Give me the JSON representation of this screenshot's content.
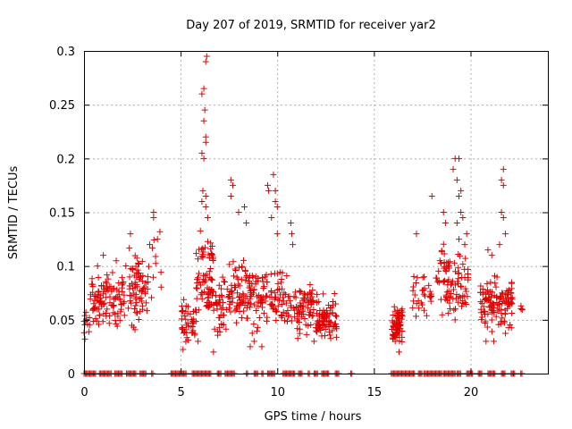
{
  "chart_data": {
    "type": "scatter",
    "title": "Day 207 of 2019, SRMTID for receiver yar2",
    "xlabel": "GPS time / hours",
    "ylabel": "SRMTID / TECUs",
    "xlim": [
      0,
      24
    ],
    "ylim": [
      0,
      0.3
    ],
    "xticks": [
      0,
      5,
      10,
      15,
      20
    ],
    "yticks": [
      0,
      0.05,
      0.1,
      0.15,
      0.2,
      0.25,
      0.3
    ],
    "ytick_labels": [
      "0",
      "0.05",
      "0.1",
      "0.15",
      "0.2",
      "0.25",
      "0.3"
    ],
    "grid": true,
    "marker": "+",
    "color": "#e00000",
    "clusters": [
      {
        "x_range": [
          0.0,
          0.3
        ],
        "y_range": [
          0.025,
          0.07
        ],
        "count": 12
      },
      {
        "x_range": [
          0.3,
          2.3
        ],
        "y_range": [
          0.03,
          0.11
        ],
        "count": 110
      },
      {
        "x_range": [
          2.3,
          3.3
        ],
        "y_range": [
          0.03,
          0.13
        ],
        "count": 70
      },
      {
        "x_range": [
          3.3,
          4.0
        ],
        "y_range": [
          0.04,
          0.15
        ],
        "count": 10
      },
      {
        "x_range": [
          5.0,
          5.8
        ],
        "y_range": [
          0.02,
          0.08
        ],
        "count": 45
      },
      {
        "x_range": [
          5.8,
          6.7
        ],
        "y_range": [
          0.04,
          0.14
        ],
        "count": 75
      },
      {
        "x_range": [
          6.7,
          7.5
        ],
        "y_range": [
          0.02,
          0.1
        ],
        "count": 40
      },
      {
        "x_range": [
          7.5,
          9.0
        ],
        "y_range": [
          0.03,
          0.11
        ],
        "count": 95
      },
      {
        "x_range": [
          9.0,
          10.5
        ],
        "y_range": [
          0.03,
          0.11
        ],
        "count": 80
      },
      {
        "x_range": [
          10.5,
          12.0
        ],
        "y_range": [
          0.03,
          0.09
        ],
        "count": 80
      },
      {
        "x_range": [
          12.0,
          13.1
        ],
        "y_range": [
          0.025,
          0.08
        ],
        "count": 80
      },
      {
        "x_range": [
          15.9,
          16.5
        ],
        "y_range": [
          0.025,
          0.065
        ],
        "count": 70
      },
      {
        "x_range": [
          17.0,
          18.0
        ],
        "y_range": [
          0.05,
          0.1
        ],
        "count": 30
      },
      {
        "x_range": [
          18.2,
          19.9
        ],
        "y_range": [
          0.04,
          0.13
        ],
        "count": 90
      },
      {
        "x_range": [
          20.5,
          22.2
        ],
        "y_range": [
          0.03,
          0.1
        ],
        "count": 120
      },
      {
        "x_range": [
          22.6,
          22.7
        ],
        "y_range": [
          0.055,
          0.065
        ],
        "count": 4
      }
    ],
    "extra_points": [
      {
        "x": 0.5,
        "y": 0.065
      },
      {
        "x": 0.7,
        "y": 0.1
      },
      {
        "x": 1.0,
        "y": 0.11
      },
      {
        "x": 2.4,
        "y": 0.13
      },
      {
        "x": 3.4,
        "y": 0.12
      },
      {
        "x": 3.6,
        "y": 0.15
      },
      {
        "x": 3.6,
        "y": 0.145
      },
      {
        "x": 3.8,
        "y": 0.125
      },
      {
        "x": 6.1,
        "y": 0.26
      },
      {
        "x": 6.2,
        "y": 0.265
      },
      {
        "x": 6.3,
        "y": 0.29
      },
      {
        "x": 6.35,
        "y": 0.295
      },
      {
        "x": 6.25,
        "y": 0.245
      },
      {
        "x": 6.2,
        "y": 0.235
      },
      {
        "x": 6.3,
        "y": 0.22
      },
      {
        "x": 6.3,
        "y": 0.215
      },
      {
        "x": 6.1,
        "y": 0.205
      },
      {
        "x": 6.2,
        "y": 0.2
      },
      {
        "x": 6.15,
        "y": 0.17
      },
      {
        "x": 6.3,
        "y": 0.165
      },
      {
        "x": 6.1,
        "y": 0.16
      },
      {
        "x": 6.3,
        "y": 0.155
      },
      {
        "x": 6.4,
        "y": 0.145
      },
      {
        "x": 6.7,
        "y": 0.02
      },
      {
        "x": 5.9,
        "y": 0.03
      },
      {
        "x": 7.6,
        "y": 0.18
      },
      {
        "x": 7.7,
        "y": 0.175
      },
      {
        "x": 7.6,
        "y": 0.165
      },
      {
        "x": 8.3,
        "y": 0.155
      },
      {
        "x": 8.0,
        "y": 0.15
      },
      {
        "x": 8.4,
        "y": 0.14
      },
      {
        "x": 9.5,
        "y": 0.175
      },
      {
        "x": 9.55,
        "y": 0.17
      },
      {
        "x": 9.8,
        "y": 0.185
      },
      {
        "x": 9.9,
        "y": 0.17
      },
      {
        "x": 9.9,
        "y": 0.16
      },
      {
        "x": 10.0,
        "y": 0.155
      },
      {
        "x": 9.7,
        "y": 0.145
      },
      {
        "x": 10.0,
        "y": 0.13
      },
      {
        "x": 10.7,
        "y": 0.14
      },
      {
        "x": 10.75,
        "y": 0.13
      },
      {
        "x": 10.8,
        "y": 0.12
      },
      {
        "x": 8.6,
        "y": 0.025
      },
      {
        "x": 8.8,
        "y": 0.03
      },
      {
        "x": 9.2,
        "y": 0.025
      },
      {
        "x": 11.9,
        "y": 0.03
      },
      {
        "x": 12.3,
        "y": 0.035
      },
      {
        "x": 16.1,
        "y": 0.03
      },
      {
        "x": 16.3,
        "y": 0.02
      },
      {
        "x": 17.2,
        "y": 0.13
      },
      {
        "x": 17.6,
        "y": 0.09
      },
      {
        "x": 18.0,
        "y": 0.165
      },
      {
        "x": 18.6,
        "y": 0.15
      },
      {
        "x": 18.7,
        "y": 0.14
      },
      {
        "x": 19.1,
        "y": 0.19
      },
      {
        "x": 19.2,
        "y": 0.2
      },
      {
        "x": 19.4,
        "y": 0.2
      },
      {
        "x": 19.3,
        "y": 0.18
      },
      {
        "x": 19.5,
        "y": 0.17
      },
      {
        "x": 19.4,
        "y": 0.165
      },
      {
        "x": 19.5,
        "y": 0.15
      },
      {
        "x": 19.6,
        "y": 0.145
      },
      {
        "x": 19.3,
        "y": 0.14
      },
      {
        "x": 19.4,
        "y": 0.125
      },
      {
        "x": 19.7,
        "y": 0.12
      },
      {
        "x": 19.8,
        "y": 0.13
      },
      {
        "x": 19.2,
        "y": 0.05
      },
      {
        "x": 21.7,
        "y": 0.19
      },
      {
        "x": 21.6,
        "y": 0.18
      },
      {
        "x": 21.7,
        "y": 0.175
      },
      {
        "x": 21.6,
        "y": 0.15
      },
      {
        "x": 21.7,
        "y": 0.145
      },
      {
        "x": 21.8,
        "y": 0.13
      },
      {
        "x": 21.5,
        "y": 0.12
      },
      {
        "x": 21.1,
        "y": 0.11
      },
      {
        "x": 20.9,
        "y": 0.115
      },
      {
        "x": 20.8,
        "y": 0.03
      },
      {
        "x": 21.2,
        "y": 0.03
      }
    ],
    "zero_ranges": [
      [
        0.0,
        0.6
      ],
      [
        0.8,
        1.4
      ],
      [
        1.6,
        2.0
      ],
      [
        2.2,
        2.7
      ],
      [
        2.9,
        3.2
      ],
      [
        3.5,
        3.6
      ],
      [
        4.5,
        5.3
      ],
      [
        5.6,
        6.6
      ],
      [
        6.9,
        7.1
      ],
      [
        7.3,
        7.8
      ],
      [
        8.4,
        8.5
      ],
      [
        8.8,
        9.0
      ],
      [
        9.2,
        9.3
      ],
      [
        9.5,
        9.9
      ],
      [
        10.3,
        10.9
      ],
      [
        11.1,
        11.3
      ],
      [
        11.6,
        11.7
      ],
      [
        11.9,
        12.1
      ],
      [
        12.3,
        12.7
      ],
      [
        13.0,
        13.2
      ],
      [
        13.8,
        13.9
      ],
      [
        15.9,
        17.1
      ],
      [
        17.3,
        17.5
      ],
      [
        17.6,
        18.5
      ],
      [
        18.6,
        19.2
      ],
      [
        19.3,
        19.5
      ],
      [
        19.8,
        20.1
      ],
      [
        20.4,
        20.6
      ],
      [
        20.9,
        21.3
      ],
      [
        21.6,
        21.8
      ],
      [
        22.1,
        22.3
      ],
      [
        22.6,
        22.7
      ]
    ]
  }
}
